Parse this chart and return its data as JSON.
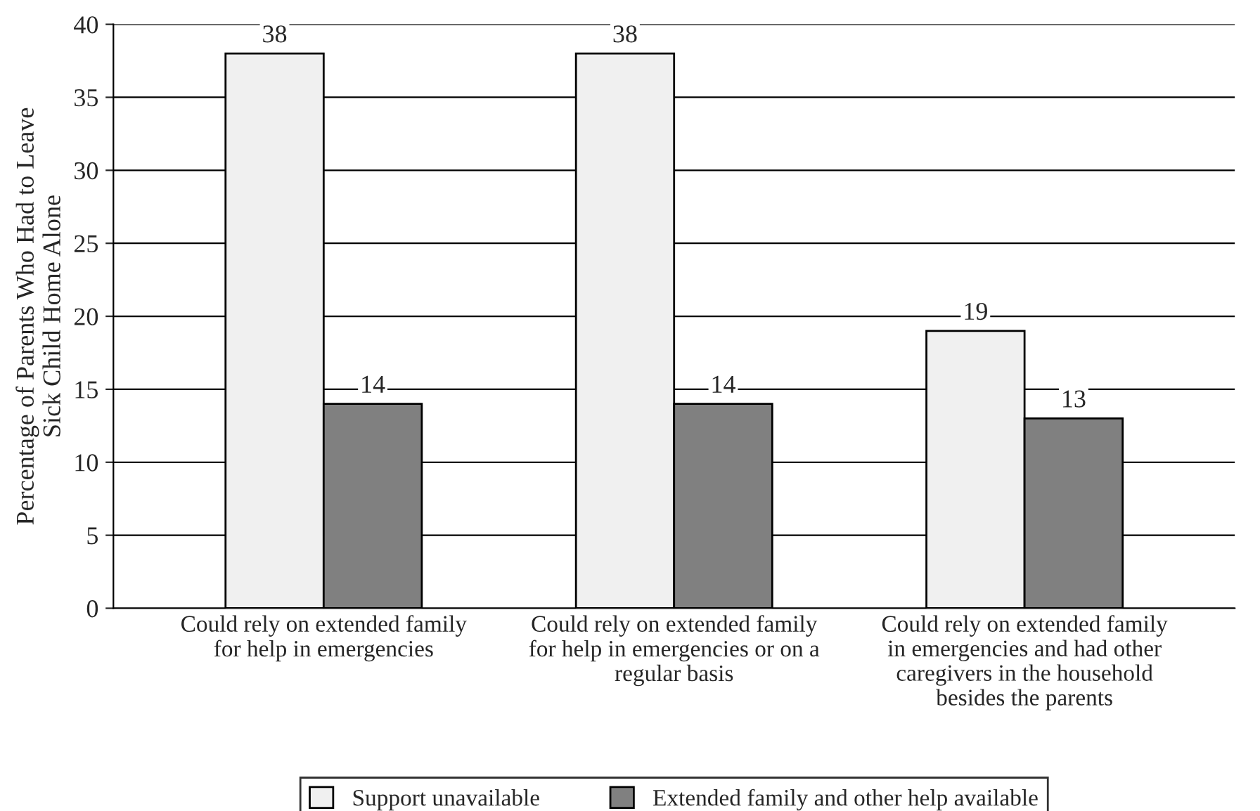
{
  "chart_data": {
    "type": "bar",
    "ylabel": "Percentage of Parents Who Had to Leave\nSick Child Home Alone",
    "categories": [
      "Could rely on extended family\nfor help in emergencies",
      "Could rely on extended family\nfor help in emergencies or on a\nregular basis",
      "Could rely on extended family\nin emergencies and had other\ncaregivers in the household\nbesides the parents"
    ],
    "series": [
      {
        "name": "Support unavailable",
        "color": "#f0f0f0",
        "values": [
          38,
          38,
          19
        ]
      },
      {
        "name": "Extended family and other help available",
        "color": "#808080",
        "values": [
          14,
          14,
          13
        ]
      }
    ],
    "ylim": [
      0,
      40
    ],
    "yticks": [
      0,
      5,
      10,
      15,
      20,
      25,
      30,
      35,
      40
    ],
    "grid": "y",
    "legend": "bottom",
    "data_labels": true
  }
}
